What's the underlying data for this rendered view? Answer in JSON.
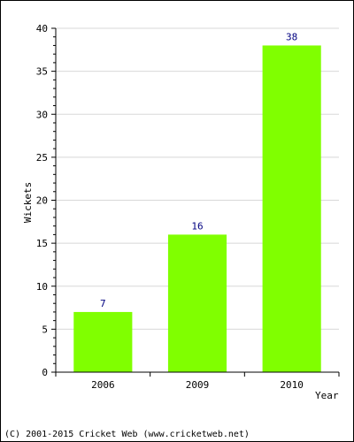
{
  "chart_data": {
    "type": "bar",
    "categories": [
      "2006",
      "2009",
      "2010"
    ],
    "values": [
      7,
      16,
      38
    ],
    "xlabel": "Year",
    "ylabel": "Wickets",
    "ylim": [
      0,
      40
    ],
    "yticks": [
      0,
      5,
      10,
      15,
      20,
      25,
      30,
      35,
      40
    ],
    "grid": true,
    "bar_color": "#80ff00",
    "label_color": "#000080",
    "data_labels": [
      "7",
      "16",
      "38"
    ]
  },
  "footer": {
    "copyright": "(C) 2001-2015 Cricket Web (www.cricketweb.net)"
  }
}
